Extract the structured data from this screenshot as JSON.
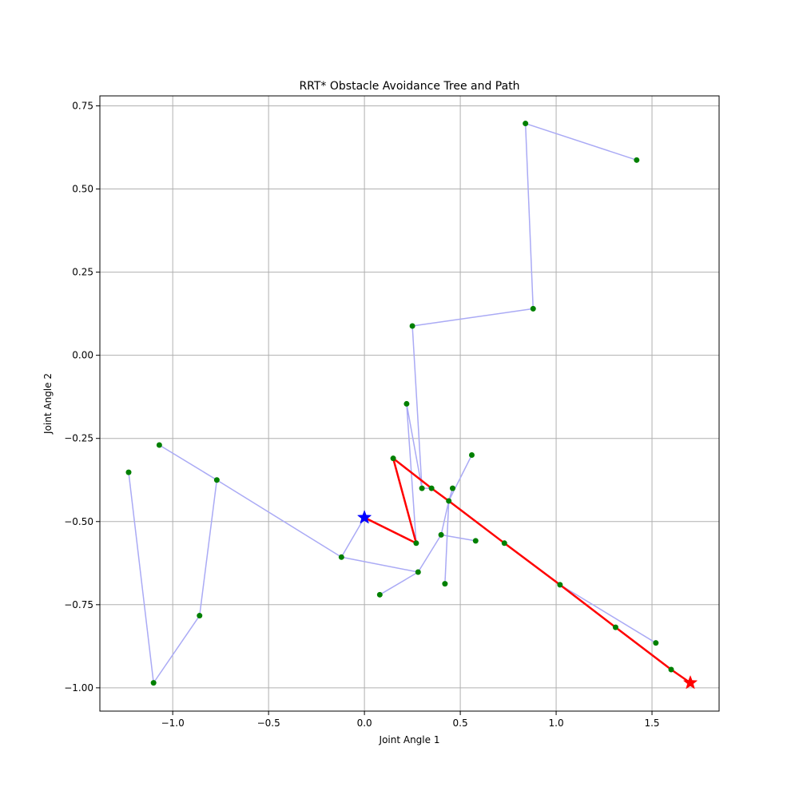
{
  "chart_data": {
    "type": "scatter",
    "title": "RRT* Obstacle Avoidance Tree and Path",
    "xlabel": "Joint Angle 1",
    "ylabel": "Joint Angle 2",
    "xlim": [
      -1.38,
      1.85
    ],
    "ylim": [
      -1.07,
      0.78
    ],
    "xticks": [
      -1.0,
      -0.5,
      0.0,
      0.5,
      1.0,
      1.5
    ],
    "xtick_labels": [
      "−1.0",
      "−0.5",
      "0.0",
      "0.5",
      "1.0",
      "1.5"
    ],
    "yticks": [
      -1.0,
      -0.75,
      -0.5,
      -0.25,
      0.0,
      0.25,
      0.5,
      0.75
    ],
    "ytick_labels": [
      "−1.00",
      "−0.75",
      "−0.50",
      "−0.25",
      "0.00",
      "0.25",
      "0.50",
      "0.75"
    ],
    "grid": true,
    "colors": {
      "node": "#008000",
      "tree_edge": "#aaaaf5",
      "path": "#ff0000",
      "start": "#0000ff",
      "goal": "#ff0000"
    },
    "nodes": [
      [
        0.0,
        -0.488
      ],
      [
        -0.12,
        -0.607
      ],
      [
        0.27,
        -0.565
      ],
      [
        0.28,
        -0.652
      ],
      [
        0.08,
        -0.72
      ],
      [
        0.15,
        -0.31
      ],
      [
        0.3,
        -0.4
      ],
      [
        0.35,
        -0.4
      ],
      [
        0.44,
        -0.438
      ],
      [
        0.46,
        -0.4
      ],
      [
        0.56,
        -0.3
      ],
      [
        0.4,
        -0.54
      ],
      [
        0.58,
        -0.558
      ],
      [
        0.42,
        -0.687
      ],
      [
        0.73,
        -0.565
      ],
      [
        1.02,
        -0.69
      ],
      [
        1.31,
        -0.818
      ],
      [
        1.52,
        -0.865
      ],
      [
        1.6,
        -0.945
      ],
      [
        0.22,
        -0.146
      ],
      [
        0.25,
        0.088
      ],
      [
        0.88,
        0.14
      ],
      [
        0.84,
        0.697
      ],
      [
        1.42,
        0.587
      ],
      [
        -0.77,
        -0.375
      ],
      [
        -1.07,
        -0.27
      ],
      [
        -0.86,
        -0.783
      ],
      [
        -1.1,
        -0.985
      ],
      [
        -1.23,
        -0.352
      ],
      [
        1.7,
        -0.985
      ]
    ],
    "tree_edges": [
      [
        [
          0.0,
          -0.488
        ],
        [
          -0.12,
          -0.607
        ]
      ],
      [
        [
          -0.12,
          -0.607
        ],
        [
          -0.77,
          -0.375
        ]
      ],
      [
        [
          -0.77,
          -0.375
        ],
        [
          -1.07,
          -0.27
        ]
      ],
      [
        [
          -0.77,
          -0.375
        ],
        [
          -0.86,
          -0.783
        ]
      ],
      [
        [
          -0.86,
          -0.783
        ],
        [
          -1.1,
          -0.985
        ]
      ],
      [
        [
          -1.1,
          -0.985
        ],
        [
          -1.23,
          -0.352
        ]
      ],
      [
        [
          -0.12,
          -0.607
        ],
        [
          0.28,
          -0.652
        ]
      ],
      [
        [
          0.28,
          -0.652
        ],
        [
          0.08,
          -0.72
        ]
      ],
      [
        [
          0.28,
          -0.652
        ],
        [
          0.4,
          -0.54
        ]
      ],
      [
        [
          0.4,
          -0.54
        ],
        [
          0.58,
          -0.558
        ]
      ],
      [
        [
          0.4,
          -0.54
        ],
        [
          0.44,
          -0.438
        ]
      ],
      [
        [
          0.44,
          -0.438
        ],
        [
          0.46,
          -0.4
        ]
      ],
      [
        [
          0.44,
          -0.438
        ],
        [
          0.35,
          -0.4
        ]
      ],
      [
        [
          0.35,
          -0.4
        ],
        [
          0.3,
          -0.4
        ]
      ],
      [
        [
          0.3,
          -0.4
        ],
        [
          0.22,
          -0.146
        ]
      ],
      [
        [
          0.3,
          -0.4
        ],
        [
          0.25,
          0.088
        ]
      ],
      [
        [
          0.25,
          0.088
        ],
        [
          0.88,
          0.14
        ]
      ],
      [
        [
          0.88,
          0.14
        ],
        [
          0.84,
          0.697
        ]
      ],
      [
        [
          0.84,
          0.697
        ],
        [
          1.42,
          0.587
        ]
      ],
      [
        [
          0.22,
          -0.146
        ],
        [
          0.27,
          -0.565
        ]
      ],
      [
        [
          0.56,
          -0.3
        ],
        [
          0.44,
          -0.438
        ]
      ],
      [
        [
          0.44,
          -0.438
        ],
        [
          0.42,
          -0.687
        ]
      ],
      [
        [
          1.02,
          -0.69
        ],
        [
          1.52,
          -0.865
        ]
      ]
    ],
    "path": [
      [
        0.0,
        -0.488
      ],
      [
        0.27,
        -0.565
      ],
      [
        0.15,
        -0.31
      ],
      [
        0.35,
        -0.4
      ],
      [
        0.44,
        -0.438
      ],
      [
        0.73,
        -0.565
      ],
      [
        1.02,
        -0.69
      ],
      [
        1.31,
        -0.818
      ],
      [
        1.6,
        -0.945
      ],
      [
        1.7,
        -0.985
      ]
    ],
    "start": [
      0.0,
      -0.488
    ],
    "goal": [
      1.7,
      -0.985
    ]
  }
}
